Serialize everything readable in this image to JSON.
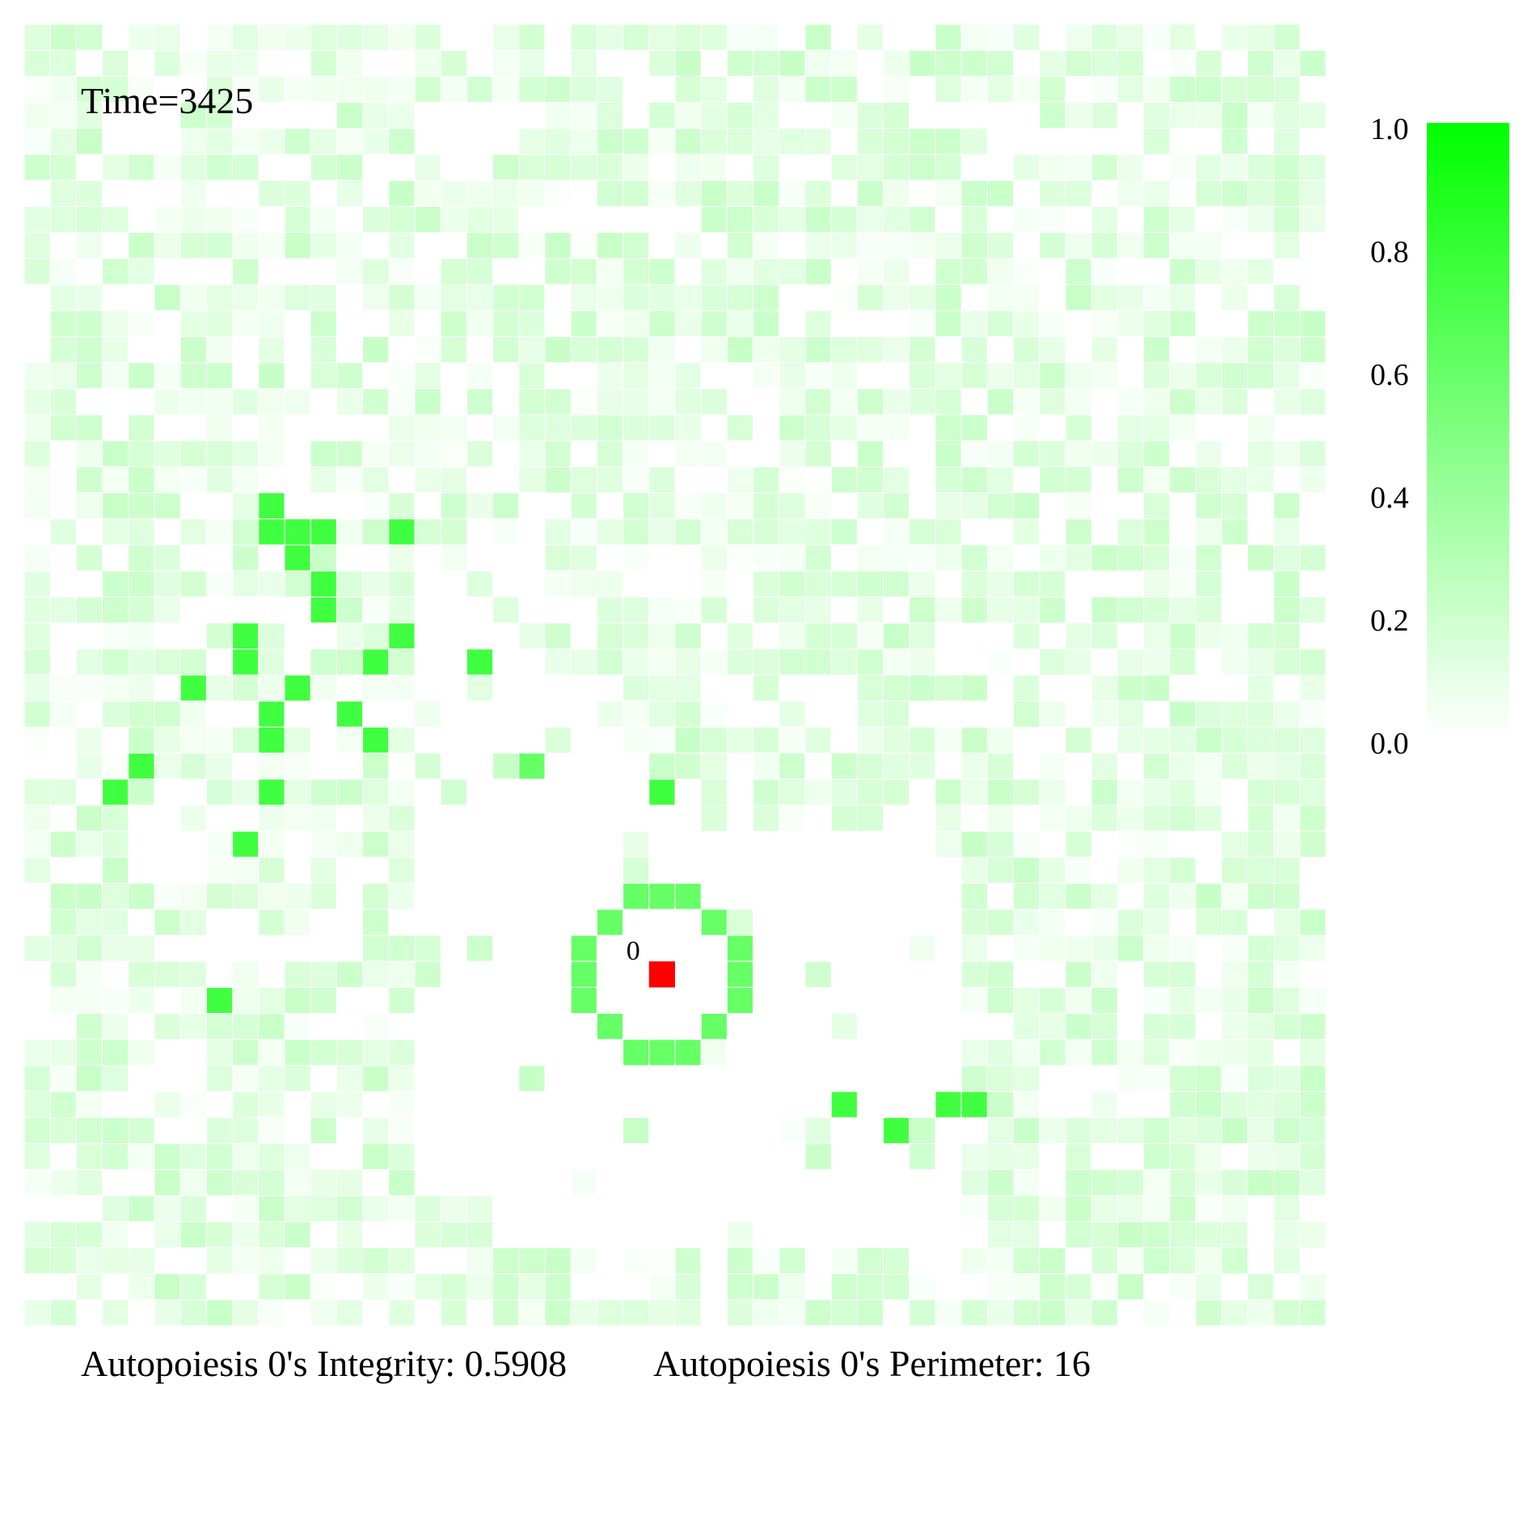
{
  "time_label": "Time=3425",
  "integrity_label": "Autopoiesis 0's Integrity: 0.5908",
  "perimeter_label": "Autopoiesis 0's Perimeter: 16",
  "agent_label": "0",
  "colors": {
    "low": "#ffffff",
    "high": "#00ff00",
    "agent": "#ff0000",
    "cell_border": "#ffffff"
  },
  "chart_data": {
    "type": "heatmap",
    "title": "",
    "xlabel": "",
    "ylabel": "",
    "grid_size": [
      50,
      50
    ],
    "color_range": [
      0.0,
      1.0
    ],
    "colorbar": {
      "ticks": [
        "1.0",
        "0.8",
        "0.6",
        "0.4",
        "0.2",
        "0.0"
      ]
    },
    "background": {
      "rows": "all 50 rows",
      "typical_value_range": [
        0.0,
        0.2
      ],
      "note": "faint green substrate across most of the grid; sparse in a diagonal band through the middle-left"
    },
    "strong_cells": [
      {
        "row": 18,
        "col": 9,
        "value": 0.75
      },
      {
        "row": 19,
        "col": 9,
        "value": 0.75
      },
      {
        "row": 19,
        "col": 10,
        "value": 0.75
      },
      {
        "row": 19,
        "col": 11,
        "value": 0.75
      },
      {
        "row": 19,
        "col": 14,
        "value": 0.75
      },
      {
        "row": 20,
        "col": 10,
        "value": 0.75
      },
      {
        "row": 21,
        "col": 11,
        "value": 0.75
      },
      {
        "row": 22,
        "col": 11,
        "value": 0.75
      },
      {
        "row": 23,
        "col": 8,
        "value": 0.75
      },
      {
        "row": 23,
        "col": 14,
        "value": 0.75
      },
      {
        "row": 24,
        "col": 8,
        "value": 0.75
      },
      {
        "row": 24,
        "col": 13,
        "value": 0.75
      },
      {
        "row": 24,
        "col": 17,
        "value": 0.75
      },
      {
        "row": 25,
        "col": 6,
        "value": 0.75
      },
      {
        "row": 25,
        "col": 10,
        "value": 0.75
      },
      {
        "row": 26,
        "col": 9,
        "value": 0.75
      },
      {
        "row": 26,
        "col": 12,
        "value": 0.75
      },
      {
        "row": 27,
        "col": 9,
        "value": 0.75
      },
      {
        "row": 27,
        "col": 13,
        "value": 0.75
      },
      {
        "row": 28,
        "col": 4,
        "value": 0.75
      },
      {
        "row": 28,
        "col": 19,
        "value": 0.6
      },
      {
        "row": 29,
        "col": 3,
        "value": 0.75
      },
      {
        "row": 29,
        "col": 9,
        "value": 0.75
      },
      {
        "row": 29,
        "col": 24,
        "value": 0.75
      },
      {
        "row": 31,
        "col": 8,
        "value": 0.75
      },
      {
        "row": 37,
        "col": 7,
        "value": 0.75
      },
      {
        "row": 41,
        "col": 31,
        "value": 0.75
      },
      {
        "row": 41,
        "col": 35,
        "value": 0.75
      },
      {
        "row": 41,
        "col": 36,
        "value": 0.75
      },
      {
        "row": 42,
        "col": 33,
        "value": 0.75
      }
    ],
    "membrane_cells": [
      {
        "row": 33,
        "col": 23,
        "value": 0.6
      },
      {
        "row": 33,
        "col": 24,
        "value": 0.6
      },
      {
        "row": 33,
        "col": 25,
        "value": 0.6
      },
      {
        "row": 34,
        "col": 22,
        "value": 0.6
      },
      {
        "row": 34,
        "col": 26,
        "value": 0.6
      },
      {
        "row": 35,
        "col": 21,
        "value": 0.6
      },
      {
        "row": 35,
        "col": 27,
        "value": 0.6
      },
      {
        "row": 36,
        "col": 21,
        "value": 0.6
      },
      {
        "row": 36,
        "col": 27,
        "value": 0.6
      },
      {
        "row": 37,
        "col": 21,
        "value": 0.6
      },
      {
        "row": 37,
        "col": 27,
        "value": 0.6
      },
      {
        "row": 38,
        "col": 22,
        "value": 0.6
      },
      {
        "row": 38,
        "col": 26,
        "value": 0.6
      },
      {
        "row": 39,
        "col": 23,
        "value": 0.6
      },
      {
        "row": 39,
        "col": 24,
        "value": 0.6
      },
      {
        "row": 39,
        "col": 25,
        "value": 0.6
      }
    ],
    "agents": [
      {
        "id": "0",
        "row": 36,
        "col": 24
      }
    ],
    "integrity": 0.5908,
    "perimeter": 16,
    "time": 3425
  }
}
